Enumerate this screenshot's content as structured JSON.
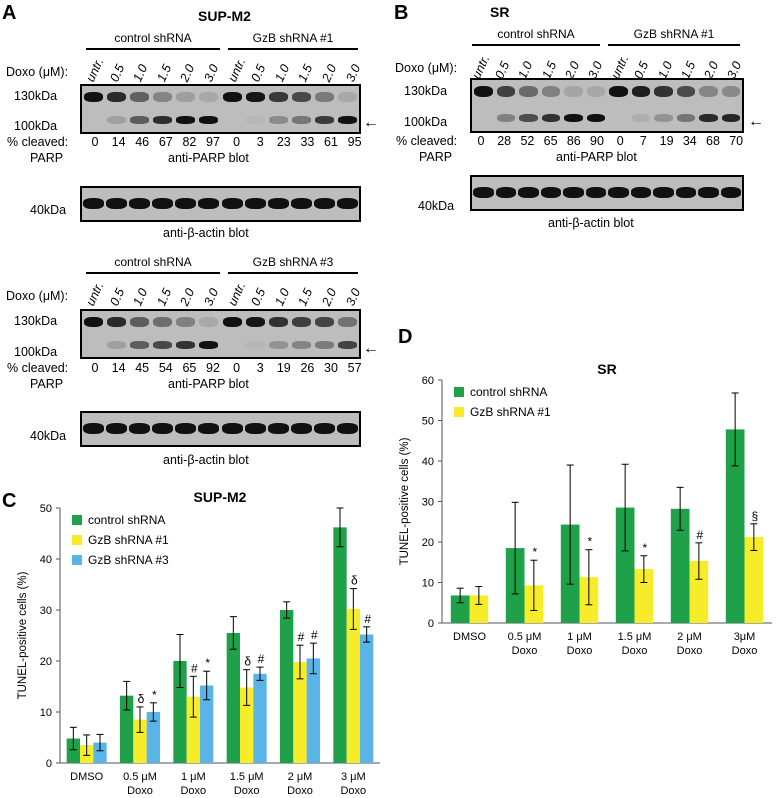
{
  "panels": {
    "A": {
      "label": "A",
      "title": "SUP-M2",
      "groups": [
        "control shRNA",
        "GzB shRNA #1"
      ],
      "doxo_label": "Doxo (μM):",
      "lanes": [
        "untr.",
        "0.5",
        "1.0",
        "1.5",
        "2.0",
        "3.0",
        "untr.",
        "0.5",
        "1.0",
        "1.5",
        "2.0",
        "3.0"
      ],
      "mw_high": "130kDa",
      "mw_low": "100kDa",
      "mw_actin": "40kDa",
      "cleaved_label": "% cleaved:",
      "parp_label": "PARP",
      "cleaved_values": [
        "0",
        "14",
        "46",
        "67",
        "82",
        "97",
        "0",
        "3",
        "23",
        "33",
        "61",
        "95"
      ],
      "blot_label": "anti-PARP blot",
      "actin_label": "anti-β-actin blot"
    },
    "A2": {
      "groups": [
        "control shRNA",
        "GzB shRNA #3"
      ],
      "doxo_label": "Doxo (μM):",
      "lanes": [
        "untr.",
        "0.5",
        "1.0",
        "1.5",
        "2.0",
        "3.0",
        "untr.",
        "0.5",
        "1.0",
        "1.5",
        "2.0",
        "3.0"
      ],
      "mw_high": "130kDa",
      "mw_low": "100kDa",
      "mw_actin": "40kDa",
      "cleaved_label": "% cleaved:",
      "parp_label": "PARP",
      "cleaved_values": [
        "0",
        "14",
        "45",
        "54",
        "65",
        "92",
        "0",
        "3",
        "19",
        "26",
        "30",
        "57"
      ],
      "blot_label": "anti-PARP blot",
      "actin_label": "anti-β-actin blot"
    },
    "B": {
      "label": "B",
      "title": "SR",
      "groups": [
        "control shRNA",
        "GzB shRNA #1"
      ],
      "doxo_label": "Doxo (μM):",
      "lanes": [
        "untr.",
        "0.5",
        "1.0",
        "1.5",
        "2.0",
        "3.0",
        "untr.",
        "0.5",
        "1.0",
        "1.5",
        "2.0",
        "3.0"
      ],
      "mw_high": "130kDa",
      "mw_low": "100kDa",
      "mw_actin": "40kDa",
      "cleaved_label": "% cleaved:",
      "parp_label": "PARP",
      "cleaved_values": [
        "0",
        "28",
        "52",
        "65",
        "86",
        "90",
        "0",
        "7",
        "19",
        "34",
        "68",
        "70"
      ],
      "blot_label": "anti-PARP blot",
      "actin_label": "anti-β-actin blot"
    }
  },
  "arrow_glyph": "←",
  "chart_data": [
    {
      "panel": "C",
      "type": "bar",
      "title": "SUP-M2",
      "ylabel": "TUNEL-positive cells (%)",
      "xlabel": "",
      "ylim": [
        0,
        50
      ],
      "yticks": [
        0,
        10,
        20,
        30,
        40,
        50
      ],
      "categories": [
        "DMSO",
        "0.5 μM Doxo",
        "1 μM Doxo",
        "1.5 μM Doxo",
        "2 μM Doxo",
        "3 μM Doxo"
      ],
      "category_lines": [
        [
          "DMSO"
        ],
        [
          "0.5 μM",
          "Doxo"
        ],
        [
          "1 μM",
          "Doxo"
        ],
        [
          "1.5 μM",
          "Doxo"
        ],
        [
          "2 μM",
          "Doxo"
        ],
        [
          "3 μM",
          "Doxo"
        ]
      ],
      "legend_position": "top-left",
      "series": [
        {
          "name": "control shRNA",
          "color": "#1fa14a",
          "values": [
            4.8,
            13.2,
            20.0,
            25.5,
            30.0,
            46.2
          ],
          "errors": [
            2.2,
            2.8,
            5.2,
            3.2,
            1.6,
            3.8
          ],
          "annotations": [
            "",
            "",
            "",
            "",
            "",
            ""
          ]
        },
        {
          "name": "GzB shRNA #1",
          "color": "#f7ec2a",
          "values": [
            3.5,
            8.5,
            13.0,
            14.8,
            19.8,
            30.2
          ],
          "errors": [
            2.0,
            2.5,
            4.0,
            3.5,
            3.3,
            4.0
          ],
          "annotations": [
            "",
            "δ",
            "#",
            "δ",
            "#",
            "δ"
          ]
        },
        {
          "name": "GzB shRNA #3",
          "color": "#5ab4e8",
          "values": [
            4.0,
            10.0,
            15.2,
            17.5,
            20.5,
            25.2
          ],
          "errors": [
            1.6,
            1.8,
            2.8,
            1.3,
            3.0,
            1.5
          ],
          "annotations": [
            "",
            "*",
            "*",
            "#",
            "#",
            "#"
          ]
        }
      ]
    },
    {
      "panel": "D",
      "type": "bar",
      "title": "SR",
      "ylabel": "TUNEL-positive cells (%)",
      "xlabel": "",
      "ylim": [
        0,
        60
      ],
      "yticks": [
        0,
        10,
        20,
        30,
        40,
        50,
        60
      ],
      "categories": [
        "DMSO",
        "0.5 μM Doxo",
        "1 μM Doxo",
        "1.5 μM Doxo",
        "2 μM Doxo",
        "3μM Doxo"
      ],
      "category_lines": [
        [
          "DMSO"
        ],
        [
          "0.5 μM",
          "Doxo"
        ],
        [
          "1 μM",
          "Doxo"
        ],
        [
          "1.5 μM",
          "Doxo"
        ],
        [
          "2 μM",
          "Doxo"
        ],
        [
          "3μM",
          "Doxo"
        ]
      ],
      "legend_position": "top-left",
      "series": [
        {
          "name": "control shRNA",
          "color": "#1fa14a",
          "values": [
            6.8,
            18.5,
            24.3,
            28.5,
            28.2,
            47.8
          ],
          "errors": [
            1.8,
            11.3,
            14.7,
            10.7,
            5.3,
            9.0
          ],
          "annotations": [
            "",
            "",
            "",
            "",
            "",
            ""
          ]
        },
        {
          "name": "GzB shRNA #1",
          "color": "#f7ec2a",
          "values": [
            6.8,
            9.3,
            11.3,
            13.3,
            15.3,
            21.2
          ],
          "errors": [
            2.2,
            6.2,
            6.8,
            3.3,
            4.5,
            3.3
          ],
          "annotations": [
            "",
            "*",
            "*",
            "*",
            "#",
            "§"
          ]
        }
      ]
    }
  ]
}
